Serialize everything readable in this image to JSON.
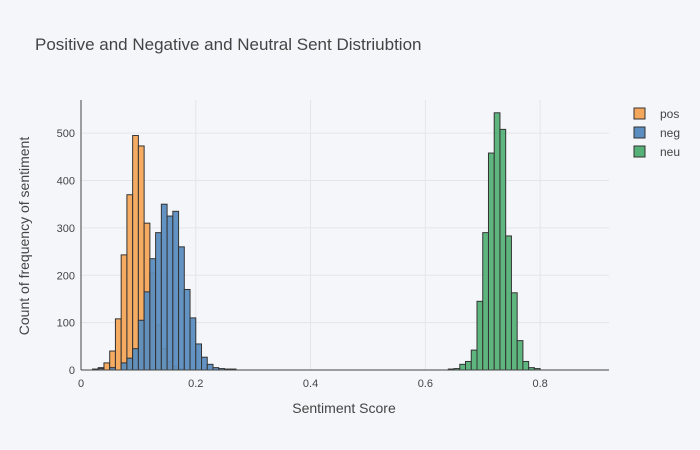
{
  "chart_data": {
    "type": "histogram",
    "title": "Positive and Negative and Neutral Sent Distriubtion",
    "xlabel": "Sentiment Score",
    "ylabel": "Count of frequency of sentiment",
    "xlim": [
      0,
      0.92
    ],
    "ylim": [
      0,
      570
    ],
    "xticks": [
      0,
      0.2,
      0.4,
      0.6,
      0.8
    ],
    "xtick_labels": [
      "0",
      "0.2",
      "0.4",
      "0.6",
      "0.8"
    ],
    "yticks": [
      0,
      100,
      200,
      300,
      400,
      500
    ],
    "grid": true,
    "legend": "top-right",
    "bin_width": 0.01,
    "series": [
      {
        "name": "pos",
        "color": "#f4a65a",
        "bins": [
          [
            0.03,
            5
          ],
          [
            0.04,
            15
          ],
          [
            0.05,
            40
          ],
          [
            0.06,
            108
          ],
          [
            0.07,
            243
          ],
          [
            0.08,
            370
          ],
          [
            0.09,
            495
          ],
          [
            0.1,
            473
          ],
          [
            0.11,
            310
          ],
          [
            0.12,
            205
          ],
          [
            0.13,
            95
          ],
          [
            0.14,
            45
          ],
          [
            0.15,
            18
          ],
          [
            0.16,
            8
          ],
          [
            0.17,
            3
          ]
        ]
      },
      {
        "name": "neg",
        "color": "#5b8dc0",
        "bins": [
          [
            0.02,
            2
          ],
          [
            0.03,
            3
          ],
          [
            0.05,
            5
          ],
          [
            0.07,
            15
          ],
          [
            0.08,
            25
          ],
          [
            0.09,
            45
          ],
          [
            0.1,
            105
          ],
          [
            0.11,
            165
          ],
          [
            0.12,
            235
          ],
          [
            0.13,
            290
          ],
          [
            0.14,
            350
          ],
          [
            0.15,
            325
          ],
          [
            0.16,
            335
          ],
          [
            0.17,
            260
          ],
          [
            0.18,
            170
          ],
          [
            0.19,
            110
          ],
          [
            0.2,
            55
          ],
          [
            0.21,
            27
          ],
          [
            0.22,
            12
          ],
          [
            0.23,
            5
          ],
          [
            0.24,
            3
          ],
          [
            0.25,
            2
          ],
          [
            0.26,
            2
          ]
        ]
      },
      {
        "name": "neu",
        "color": "#55b177",
        "bins": [
          [
            0.64,
            2
          ],
          [
            0.65,
            3
          ],
          [
            0.66,
            12
          ],
          [
            0.67,
            18
          ],
          [
            0.68,
            42
          ],
          [
            0.69,
            145
          ],
          [
            0.7,
            290
          ],
          [
            0.71,
            458
          ],
          [
            0.72,
            543
          ],
          [
            0.73,
            508
          ],
          [
            0.74,
            283
          ],
          [
            0.75,
            163
          ],
          [
            0.76,
            62
          ],
          [
            0.77,
            18
          ],
          [
            0.78,
            5
          ],
          [
            0.79,
            3
          ]
        ]
      }
    ]
  }
}
